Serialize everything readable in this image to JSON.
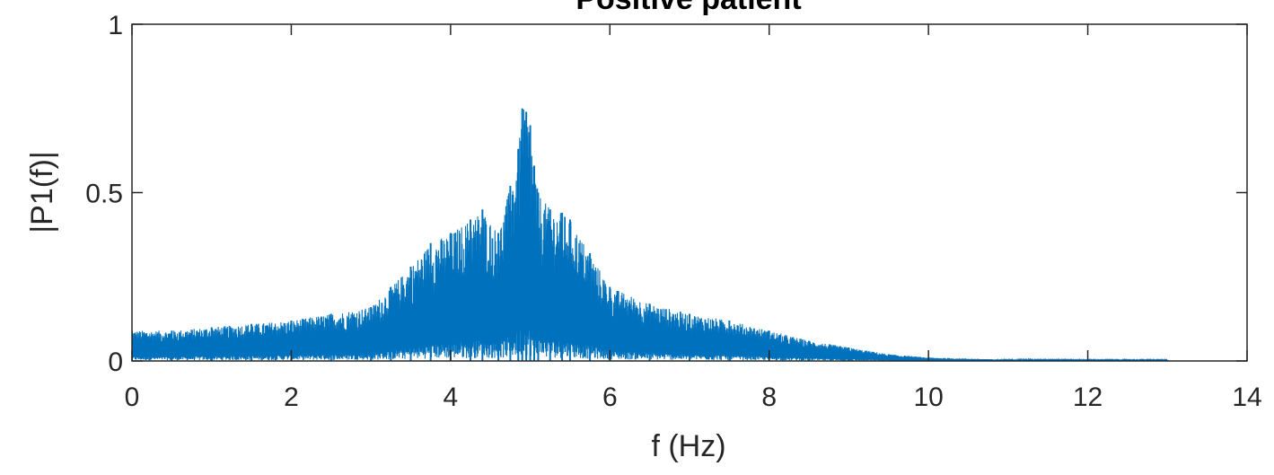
{
  "chart_data": {
    "type": "line",
    "title": "Positive patient",
    "xlabel": "f (Hz)",
    "ylabel": "|P1(f)|",
    "xlim": [
      0,
      14
    ],
    "ylim": [
      0,
      1
    ],
    "x_ticks": [
      0,
      2,
      4,
      6,
      8,
      10,
      12,
      14
    ],
    "x_tick_labels": [
      "0",
      "2",
      "4",
      "6",
      "8",
      "10",
      "12",
      "14"
    ],
    "y_ticks": [
      0,
      0.5,
      1
    ],
    "y_tick_labels": [
      "0",
      "0.5",
      "1"
    ],
    "grid": false,
    "line_color": "#0072BD",
    "series": [
      {
        "x": [
          0,
          0.5,
          1,
          1.5,
          2,
          2.5,
          3,
          3.25,
          3.5,
          3.75,
          4,
          4.25,
          4.4,
          4.6,
          4.75,
          4.85,
          4.9,
          4.95,
          5.0,
          5.05,
          5.1,
          5.25,
          5.4,
          5.5,
          5.75,
          6,
          6.5,
          7,
          7.5,
          8,
          8.5,
          9,
          9.5,
          10,
          11,
          12,
          13
        ],
        "y": [
          0.09,
          0.09,
          0.1,
          0.11,
          0.12,
          0.14,
          0.16,
          0.22,
          0.28,
          0.35,
          0.38,
          0.42,
          0.45,
          0.38,
          0.52,
          0.63,
          0.75,
          0.74,
          0.7,
          0.58,
          0.5,
          0.45,
          0.44,
          0.42,
          0.32,
          0.22,
          0.17,
          0.14,
          0.12,
          0.09,
          0.06,
          0.04,
          0.02,
          0.01,
          0.004,
          0.003,
          0.003
        ]
      }
    ]
  }
}
